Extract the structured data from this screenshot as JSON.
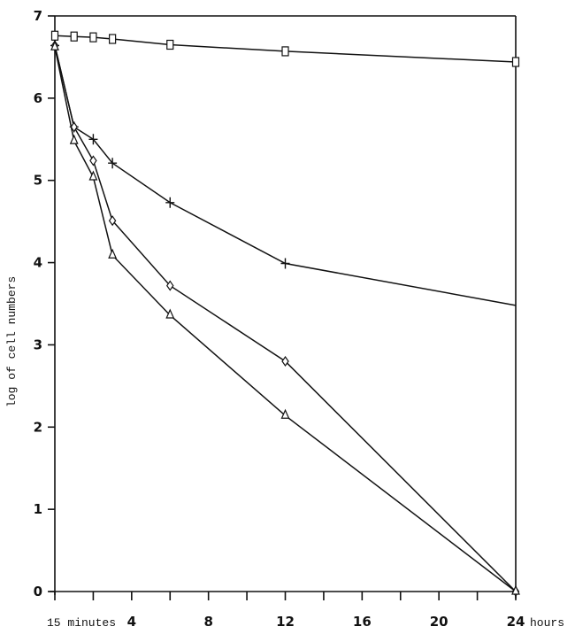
{
  "chart_data": {
    "type": "line",
    "title": "",
    "xlabel_start": "15 minutes",
    "xlabel_unit": "hours",
    "ylabel": "log of cell numbers",
    "xlim": [
      0.25,
      24
    ],
    "ylim": [
      0,
      7
    ],
    "x_ticks": [
      0,
      2,
      4,
      6,
      8,
      10,
      12,
      14,
      16,
      18,
      20,
      22,
      24
    ],
    "x_tick_labels": [
      {
        "x": 0,
        "label": "15 minutes"
      },
      {
        "x": 4,
        "label": "4"
      },
      {
        "x": 8,
        "label": "8"
      },
      {
        "x": 12,
        "label": "12"
      },
      {
        "x": 16,
        "label": "16"
      },
      {
        "x": 20,
        "label": "20"
      },
      {
        "x": 24,
        "label": "24"
      }
    ],
    "y_ticks": [
      0,
      1,
      2,
      3,
      4,
      5,
      6,
      7
    ],
    "y_tick_labels": [
      "0",
      "1",
      "2",
      "3",
      "4",
      "5",
      "6",
      "7"
    ],
    "grid": false,
    "legend": null,
    "x": [
      0.25,
      1,
      2,
      3,
      6,
      12,
      24
    ],
    "series": [
      {
        "name": "square",
        "marker": "square",
        "values": [
          6.76,
          6.75,
          6.74,
          6.72,
          6.65,
          6.57,
          6.44
        ]
      },
      {
        "name": "plus",
        "marker": "plus",
        "values": [
          6.64,
          5.65,
          5.5,
          5.21,
          4.73,
          3.99,
          3.48
        ],
        "marker_mask": [
          true,
          true,
          true,
          true,
          true,
          true,
          false
        ]
      },
      {
        "name": "diamond",
        "marker": "diamond",
        "values": [
          6.64,
          5.65,
          5.24,
          4.51,
          3.72,
          2.8,
          0.0
        ]
      },
      {
        "name": "triangle",
        "marker": "triangle",
        "values": [
          6.62,
          5.48,
          5.04,
          4.09,
          3.36,
          2.14,
          0.0
        ]
      }
    ]
  },
  "axis_labels": {
    "y": "log of cell numbers",
    "x_start": "15 minutes",
    "x_unit": "hours"
  }
}
